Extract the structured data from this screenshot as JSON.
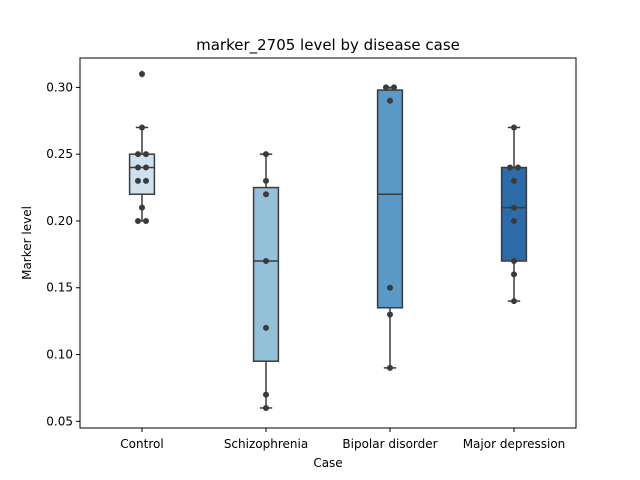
{
  "chart_data": {
    "type": "box",
    "title": "marker_2705 level by disease case",
    "xlabel": "Case",
    "ylabel": "Marker level",
    "categories": [
      "Control",
      "Schizophrenia",
      "Bipolar disorder",
      "Major depression"
    ],
    "ylim": [
      0.045,
      0.322
    ],
    "yticks": [
      0.05,
      0.1,
      0.15,
      0.2,
      0.25,
      0.3
    ],
    "ytick_labels": [
      "0.05",
      "0.10",
      "0.15",
      "0.20",
      "0.25",
      "0.30"
    ],
    "grid": false,
    "legend": "none",
    "colors": {
      "boxes": [
        "#cfe0ef",
        "#95c0da",
        "#5b99c6",
        "#2d6aa8"
      ],
      "lines": "#3b3b3b",
      "points": "#3b3b3b"
    },
    "boxes": [
      {
        "category": "Control",
        "whisker_low": 0.2,
        "q1": 0.22,
        "median": 0.24,
        "q3": 0.25,
        "whisker_high": 0.27,
        "outliers": [
          0.31
        ]
      },
      {
        "category": "Schizophrenia",
        "whisker_low": 0.06,
        "q1": 0.095,
        "median": 0.17,
        "q3": 0.225,
        "whisker_high": 0.25,
        "outliers": []
      },
      {
        "category": "Bipolar disorder",
        "whisker_low": 0.09,
        "q1": 0.135,
        "median": 0.22,
        "q3": 0.298,
        "whisker_high": 0.3,
        "outliers": []
      },
      {
        "category": "Major depression",
        "whisker_low": 0.14,
        "q1": 0.17,
        "median": 0.21,
        "q3": 0.24,
        "whisker_high": 0.27,
        "outliers": []
      }
    ],
    "points": [
      {
        "category": "Control",
        "values": [
          0.31,
          0.27,
          0.25,
          0.25,
          0.24,
          0.24,
          0.23,
          0.23,
          0.21,
          0.2,
          0.2
        ]
      },
      {
        "category": "Schizophrenia",
        "values": [
          0.25,
          0.23,
          0.22,
          0.17,
          0.12,
          0.07,
          0.06
        ]
      },
      {
        "category": "Bipolar disorder",
        "values": [
          0.3,
          0.3,
          0.29,
          0.15,
          0.13,
          0.09
        ]
      },
      {
        "category": "Major depression",
        "values": [
          0.27,
          0.24,
          0.24,
          0.23,
          0.21,
          0.2,
          0.17,
          0.16,
          0.14
        ]
      }
    ]
  }
}
